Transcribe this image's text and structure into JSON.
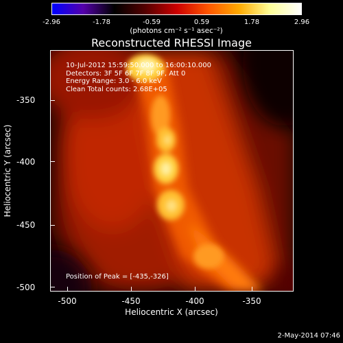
{
  "colorbar": {
    "ticks": [
      "-2.96",
      "-1.78",
      "-0.59",
      "0.59",
      "1.78",
      "2.96"
    ],
    "units": "(photons cm⁻² s⁻¹ asec⁻²)",
    "colors": [
      "#0000ff",
      "#5500aa",
      "#000000",
      "#550000",
      "#cc0000",
      "#ff5500",
      "#ffaa00",
      "#ffff99",
      "#ffffff"
    ]
  },
  "title": "Reconstructed RHESSI Image",
  "info": {
    "time": "10-Jul-2012 15:59:50.000 to 16:00:10.000",
    "detectors": "Detectors: 3F 5F 6F 7F 8F 9F, Att 0",
    "energy": "Energy Range: 3.0 - 6.0 keV",
    "clean": "Clean     Total counts: 2.68E+05",
    "peak": "Position of Peak = [-435,-326]"
  },
  "axes": {
    "xlabel": "Heliocentric X (arcsec)",
    "ylabel": "Heliocentric Y (arcsec)",
    "xticks": [
      "-500",
      "-450",
      "-400",
      "-350"
    ],
    "yticks": [
      "-350",
      "-400",
      "-450",
      "-500"
    ]
  },
  "footer": {
    "date": "2-May-2014 07:46"
  }
}
